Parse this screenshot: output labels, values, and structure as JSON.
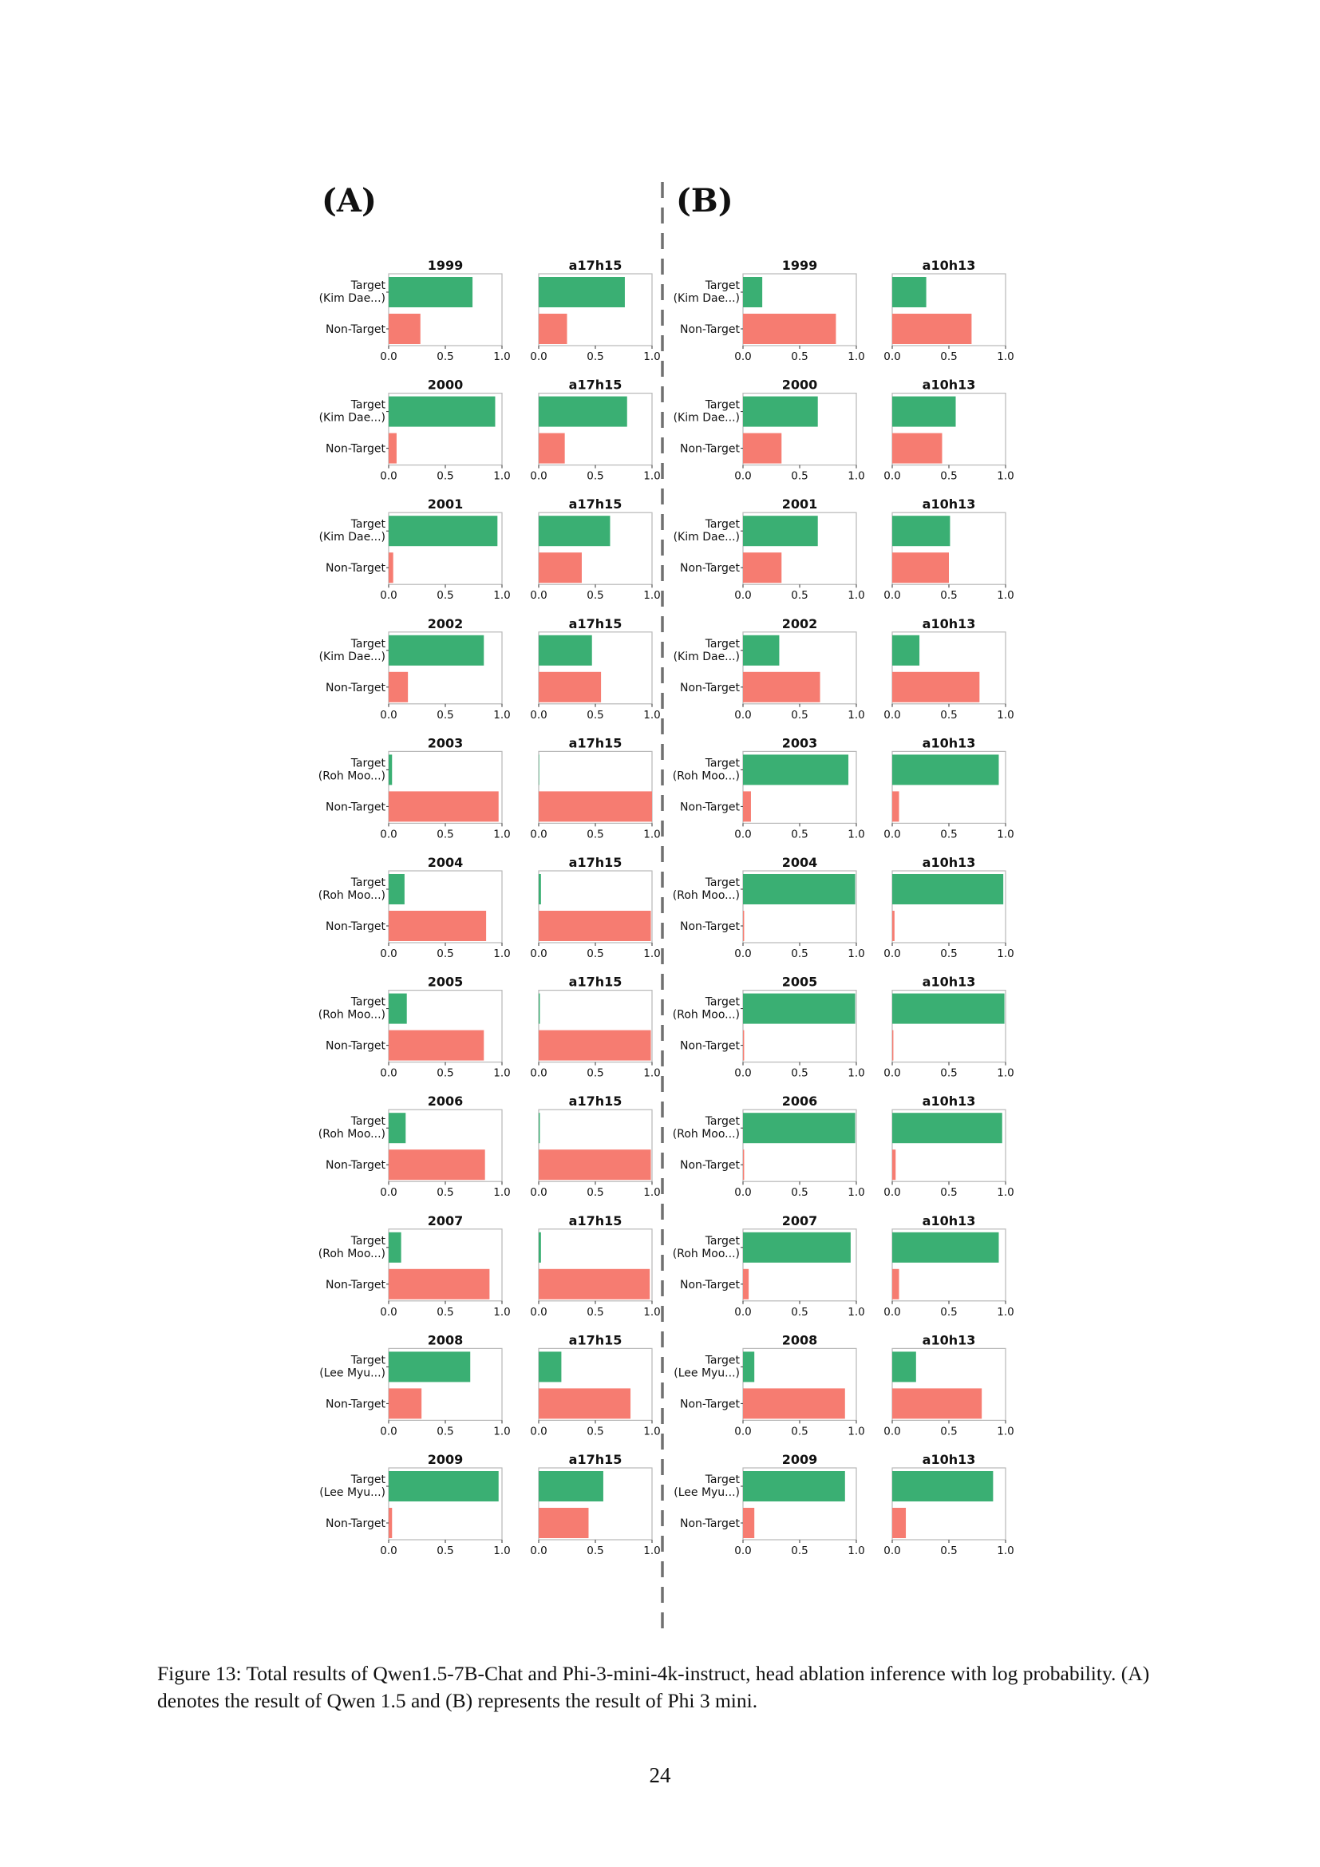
{
  "panels": {
    "left_label": "(A)",
    "right_label": "(B)"
  },
  "caption": "Figure 13: Total results of Qwen1.5-7B-Chat and Phi-3-mini-4k-instruct, head ablation inference with log probability. (A) denotes the result of Qwen 1.5 and (B) represents the result of Phi 3 mini.",
  "page_number": "24",
  "colors": {
    "target": "#3aaf73",
    "non_target": "#f67c71",
    "divider": "#707070",
    "frame": "#b8b8b8"
  },
  "chart_data": {
    "type": "bar",
    "orientation": "horizontal",
    "bar_labels": [
      "Target",
      "Non-Target"
    ],
    "xticks": [
      "0.0",
      "0.5",
      "1.0"
    ],
    "xlim": [
      0,
      1
    ],
    "panels": [
      {
        "panel": "(A)",
        "ablated_head": "a17h15",
        "rows": [
          {
            "year": "1999",
            "target_name": "(Kim Dae...)",
            "baseline": [
              0.74,
              0.28
            ],
            "ablated": [
              0.76,
              0.25
            ]
          },
          {
            "year": "2000",
            "target_name": "(Kim Dae...)",
            "baseline": [
              0.94,
              0.07
            ],
            "ablated": [
              0.78,
              0.23
            ]
          },
          {
            "year": "2001",
            "target_name": "(Kim Dae...)",
            "baseline": [
              0.96,
              0.04
            ],
            "ablated": [
              0.63,
              0.38
            ]
          },
          {
            "year": "2002",
            "target_name": "(Kim Dae...)",
            "baseline": [
              0.84,
              0.17
            ],
            "ablated": [
              0.47,
              0.55
            ]
          },
          {
            "year": "2003",
            "target_name": "(Roh Moo...)",
            "baseline": [
              0.03,
              0.97
            ],
            "ablated": [
              0.0,
              1.0
            ]
          },
          {
            "year": "2004",
            "target_name": "(Roh Moo...)",
            "baseline": [
              0.14,
              0.86
            ],
            "ablated": [
              0.02,
              0.99
            ]
          },
          {
            "year": "2005",
            "target_name": "(Roh Moo...)",
            "baseline": [
              0.16,
              0.84
            ],
            "ablated": [
              0.01,
              0.99
            ]
          },
          {
            "year": "2006",
            "target_name": "(Roh Moo...)",
            "baseline": [
              0.15,
              0.85
            ],
            "ablated": [
              0.01,
              0.99
            ]
          },
          {
            "year": "2007",
            "target_name": "(Roh Moo...)",
            "baseline": [
              0.11,
              0.89
            ],
            "ablated": [
              0.02,
              0.98
            ]
          },
          {
            "year": "2008",
            "target_name": "(Lee Myu...)",
            "baseline": [
              0.72,
              0.29
            ],
            "ablated": [
              0.2,
              0.81
            ]
          },
          {
            "year": "2009",
            "target_name": "(Lee Myu...)",
            "baseline": [
              0.97,
              0.03
            ],
            "ablated": [
              0.57,
              0.44
            ]
          }
        ]
      },
      {
        "panel": "(B)",
        "ablated_head": "a10h13",
        "rows": [
          {
            "year": "1999",
            "target_name": "(Kim Dae...)",
            "baseline": [
              0.17,
              0.82
            ],
            "ablated": [
              0.3,
              0.7
            ]
          },
          {
            "year": "2000",
            "target_name": "(Kim Dae...)",
            "baseline": [
              0.66,
              0.34
            ],
            "ablated": [
              0.56,
              0.44
            ]
          },
          {
            "year": "2001",
            "target_name": "(Kim Dae...)",
            "baseline": [
              0.66,
              0.34
            ],
            "ablated": [
              0.51,
              0.5
            ]
          },
          {
            "year": "2002",
            "target_name": "(Kim Dae...)",
            "baseline": [
              0.32,
              0.68
            ],
            "ablated": [
              0.24,
              0.77
            ]
          },
          {
            "year": "2003",
            "target_name": "(Roh Moo...)",
            "baseline": [
              0.93,
              0.07
            ],
            "ablated": [
              0.94,
              0.06
            ]
          },
          {
            "year": "2004",
            "target_name": "(Roh Moo...)",
            "baseline": [
              0.99,
              0.01
            ],
            "ablated": [
              0.98,
              0.02
            ]
          },
          {
            "year": "2005",
            "target_name": "(Roh Moo...)",
            "baseline": [
              0.99,
              0.01
            ],
            "ablated": [
              0.99,
              0.01
            ]
          },
          {
            "year": "2006",
            "target_name": "(Roh Moo...)",
            "baseline": [
              0.99,
              0.01
            ],
            "ablated": [
              0.97,
              0.03
            ]
          },
          {
            "year": "2007",
            "target_name": "(Roh Moo...)",
            "baseline": [
              0.95,
              0.05
            ],
            "ablated": [
              0.94,
              0.06
            ]
          },
          {
            "year": "2008",
            "target_name": "(Lee Myu...)",
            "baseline": [
              0.1,
              0.9
            ],
            "ablated": [
              0.21,
              0.79
            ]
          },
          {
            "year": "2009",
            "target_name": "(Lee Myu...)",
            "baseline": [
              0.9,
              0.1
            ],
            "ablated": [
              0.89,
              0.12
            ]
          }
        ]
      }
    ]
  }
}
